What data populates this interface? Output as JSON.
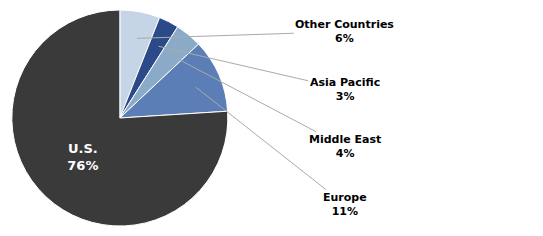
{
  "chart_data": {
    "type": "pie",
    "categories": [
      "Other Countries",
      "Asia Pacific",
      "Middle East",
      "Europe",
      "U.S."
    ],
    "values": [
      6,
      3,
      4,
      11,
      76
    ],
    "value_labels": [
      "6%",
      "3%",
      "4%",
      "11%",
      "76%"
    ],
    "colors": [
      "#c5d5e5",
      "#2a4a8a",
      "#8aaac8",
      "#5a7eb5",
      "#3a3a3a"
    ],
    "data_labels": true
  }
}
